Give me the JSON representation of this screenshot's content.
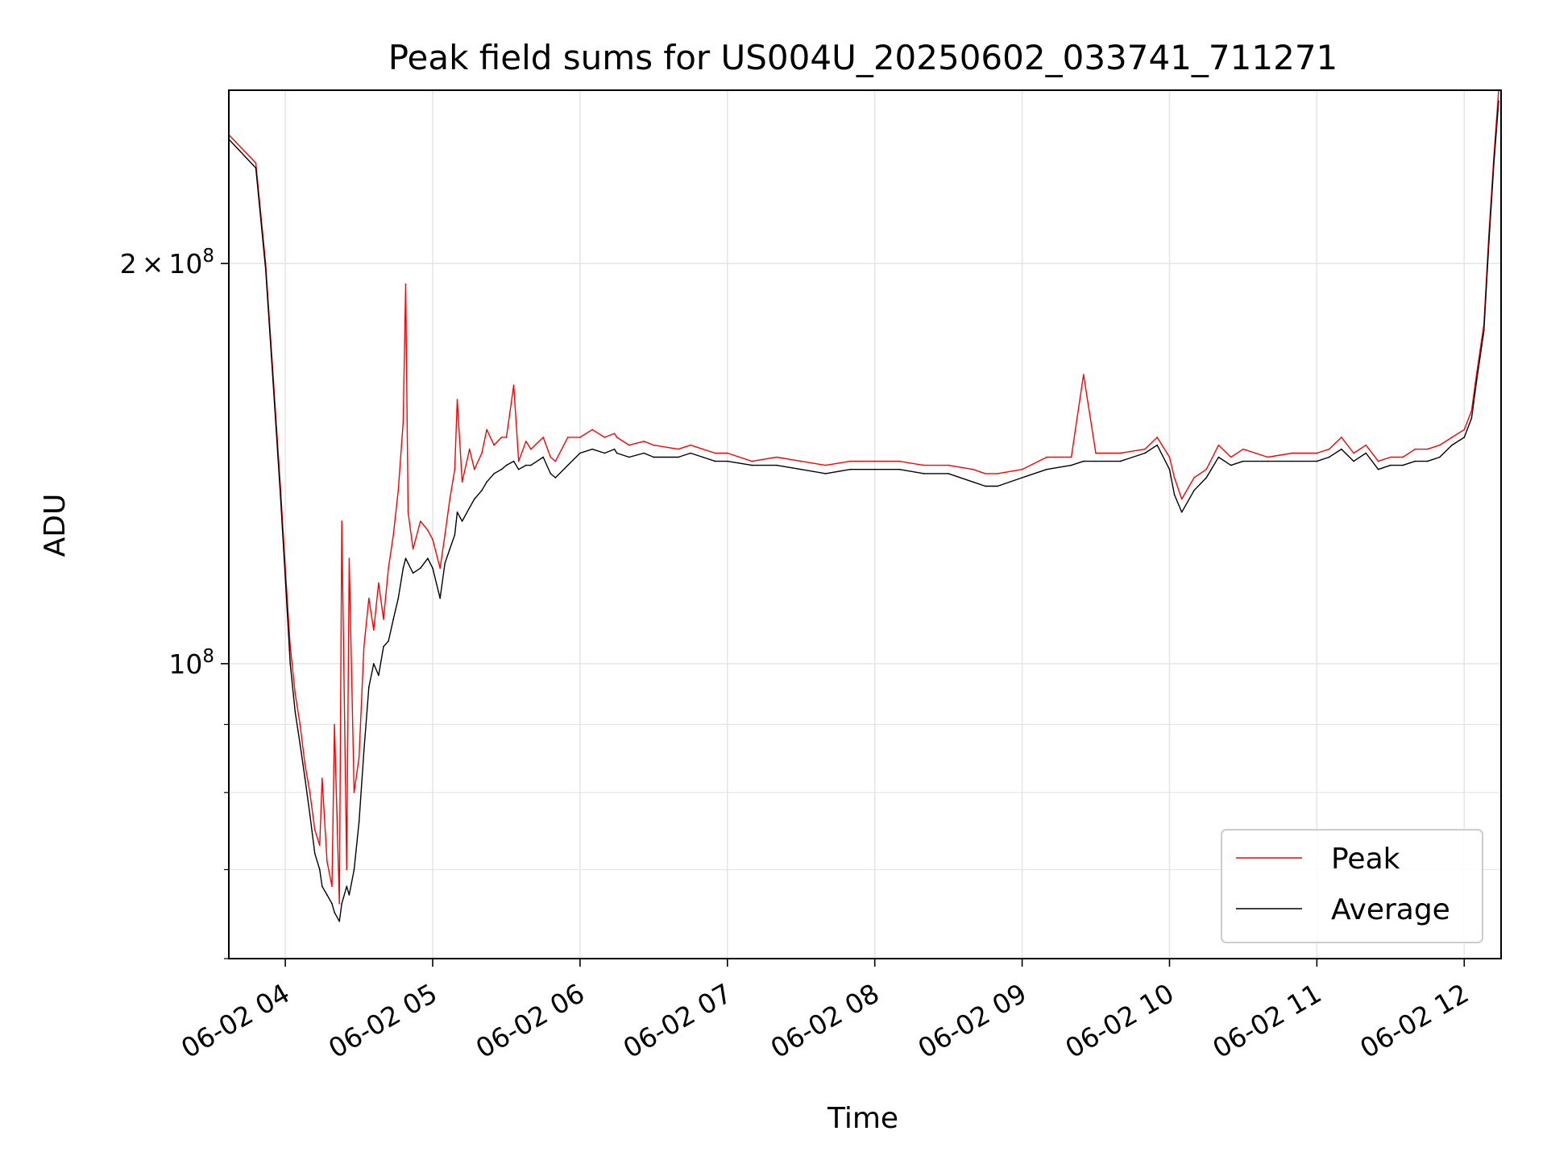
{
  "chart_data": {
    "type": "line",
    "title": "Peak field sums for US004U_20250602_033741_711271",
    "xlabel": "Time",
    "ylabel": "ADU",
    "x_scale": "time",
    "y_scale": "log",
    "xlim": [
      "06-02 03:37",
      "06-02 12:15"
    ],
    "ylim": [
      60000000,
      270000000
    ],
    "x_ticks": [
      "06-02 04",
      "06-02 05",
      "06-02 06",
      "06-02 07",
      "06-02 08",
      "06-02 09",
      "06-02 10",
      "06-02 11",
      "06-02 12"
    ],
    "y_tick_labels": [
      {
        "value": 100000000,
        "mantissa": "",
        "times": "",
        "base": "10",
        "exp": "8"
      },
      {
        "value": 200000000,
        "mantissa": "2",
        "times": "×",
        "base": "10",
        "exp": "8"
      }
    ],
    "grid": true,
    "legend_position": "lower right",
    "series": [
      {
        "name": "Peak",
        "color": "#ff0000",
        "x": [
          "06-02 03:37",
          "06-02 03:48",
          "06-02 03:52",
          "06-02 03:55",
          "06-02 03:58",
          "06-02 04:00",
          "06-02 04:02",
          "06-02 04:04",
          "06-02 04:06",
          "06-02 04:08",
          "06-02 04:10",
          "06-02 04:12",
          "06-02 04:14",
          "06-02 04:15",
          "06-02 04:17",
          "06-02 04:19",
          "06-02 04:20",
          "06-02 04:22",
          "06-02 04:23",
          "06-02 04:25",
          "06-02 04:26",
          "06-02 04:28",
          "06-02 04:30",
          "06-02 04:32",
          "06-02 04:34",
          "06-02 04:36",
          "06-02 04:38",
          "06-02 04:40",
          "06-02 04:42",
          "06-02 04:44",
          "06-02 04:46",
          "06-02 04:48",
          "06-02 04:49",
          "06-02 04:50",
          "06-02 04:52",
          "06-02 04:55",
          "06-02 04:58",
          "06-02 05:00",
          "06-02 05:03",
          "06-02 05:05",
          "06-02 05:07",
          "06-02 05:09",
          "06-02 05:10",
          "06-02 05:12",
          "06-02 05:15",
          "06-02 05:17",
          "06-02 05:20",
          "06-02 05:22",
          "06-02 05:25",
          "06-02 05:28",
          "06-02 05:30",
          "06-02 05:33",
          "06-02 05:35",
          "06-02 05:38",
          "06-02 05:40",
          "06-02 05:45",
          "06-02 05:48",
          "06-02 05:50",
          "06-02 05:55",
          "06-02 06:00",
          "06-02 06:05",
          "06-02 06:10",
          "06-02 06:14",
          "06-02 06:15",
          "06-02 06:20",
          "06-02 06:26",
          "06-02 06:30",
          "06-02 06:40",
          "06-02 06:45",
          "06-02 06:50",
          "06-02 06:55",
          "06-02 07:00",
          "06-02 07:10",
          "06-02 07:20",
          "06-02 07:30",
          "06-02 07:40",
          "06-02 07:50",
          "06-02 08:00",
          "06-02 08:10",
          "06-02 08:20",
          "06-02 08:30",
          "06-02 08:40",
          "06-02 08:45",
          "06-02 08:50",
          "06-02 09:00",
          "06-02 09:10",
          "06-02 09:20",
          "06-02 09:25",
          "06-02 09:30",
          "06-02 09:40",
          "06-02 09:50",
          "06-02 09:55",
          "06-02 10:00",
          "06-02 10:02",
          "06-02 10:05",
          "06-02 10:10",
          "06-02 10:15",
          "06-02 10:20",
          "06-02 10:25",
          "06-02 10:30",
          "06-02 10:40",
          "06-02 10:50",
          "06-02 11:00",
          "06-02 11:05",
          "06-02 11:10",
          "06-02 11:15",
          "06-02 11:20",
          "06-02 11:25",
          "06-02 11:30",
          "06-02 11:35",
          "06-02 11:40",
          "06-02 11:45",
          "06-02 11:50",
          "06-02 11:55",
          "06-02 12:00",
          "06-02 12:03",
          "06-02 12:05",
          "06-02 12:08",
          "06-02 12:10",
          "06-02 12:12",
          "06-02 12:14"
        ],
        "values": [
          250000000,
          238000000,
          200000000,
          165000000,
          136000000,
          118000000,
          103000000,
          95000000,
          90000000,
          84000000,
          80000000,
          75000000,
          73000000,
          82000000,
          71000000,
          68000000,
          90000000,
          66000000,
          128000000,
          70000000,
          120000000,
          80000000,
          85000000,
          103000000,
          112000000,
          106000000,
          115000000,
          108000000,
          118000000,
          125000000,
          135000000,
          152000000,
          193000000,
          130000000,
          122000000,
          128000000,
          126000000,
          124000000,
          118000000,
          125000000,
          133000000,
          140000000,
          158000000,
          137000000,
          145000000,
          140000000,
          144000000,
          150000000,
          146000000,
          148000000,
          148000000,
          162000000,
          142000000,
          147000000,
          145000000,
          148000000,
          143000000,
          142000000,
          148000000,
          148000000,
          150000000,
          148000000,
          149000000,
          148000000,
          146000000,
          147000000,
          146000000,
          145000000,
          146000000,
          145000000,
          144000000,
          144000000,
          142000000,
          143000000,
          142000000,
          141000000,
          142000000,
          142000000,
          142000000,
          141000000,
          141000000,
          140000000,
          139000000,
          139000000,
          140000000,
          143000000,
          143000000,
          165000000,
          144000000,
          144000000,
          145000000,
          148000000,
          143000000,
          138000000,
          133000000,
          138000000,
          140000000,
          146000000,
          143000000,
          145000000,
          143000000,
          144000000,
          144000000,
          145000000,
          148000000,
          144000000,
          146000000,
          142000000,
          143000000,
          143000000,
          145000000,
          145000000,
          146000000,
          148000000,
          150000000,
          155000000,
          165000000,
          180000000,
          210000000,
          240000000,
          270000000
        ]
      },
      {
        "name": "Average",
        "color": "#000000",
        "x": [
          "06-02 03:37",
          "06-02 03:48",
          "06-02 03:52",
          "06-02 03:55",
          "06-02 03:58",
          "06-02 04:00",
          "06-02 04:02",
          "06-02 04:04",
          "06-02 04:06",
          "06-02 04:08",
          "06-02 04:10",
          "06-02 04:12",
          "06-02 04:14",
          "06-02 04:15",
          "06-02 04:17",
          "06-02 04:19",
          "06-02 04:20",
          "06-02 04:22",
          "06-02 04:23",
          "06-02 04:25",
          "06-02 04:26",
          "06-02 04:28",
          "06-02 04:30",
          "06-02 04:32",
          "06-02 04:34",
          "06-02 04:36",
          "06-02 04:38",
          "06-02 04:40",
          "06-02 04:42",
          "06-02 04:44",
          "06-02 04:46",
          "06-02 04:48",
          "06-02 04:49",
          "06-02 04:50",
          "06-02 04:52",
          "06-02 04:55",
          "06-02 04:58",
          "06-02 05:00",
          "06-02 05:03",
          "06-02 05:05",
          "06-02 05:07",
          "06-02 05:09",
          "06-02 05:10",
          "06-02 05:12",
          "06-02 05:15",
          "06-02 05:17",
          "06-02 05:20",
          "06-02 05:22",
          "06-02 05:25",
          "06-02 05:28",
          "06-02 05:30",
          "06-02 05:33",
          "06-02 05:35",
          "06-02 05:38",
          "06-02 05:40",
          "06-02 05:45",
          "06-02 05:48",
          "06-02 05:50",
          "06-02 05:55",
          "06-02 06:00",
          "06-02 06:05",
          "06-02 06:10",
          "06-02 06:14",
          "06-02 06:15",
          "06-02 06:20",
          "06-02 06:26",
          "06-02 06:30",
          "06-02 06:40",
          "06-02 06:45",
          "06-02 06:50",
          "06-02 06:55",
          "06-02 07:00",
          "06-02 07:10",
          "06-02 07:20",
          "06-02 07:30",
          "06-02 07:40",
          "06-02 07:50",
          "06-02 08:00",
          "06-02 08:10",
          "06-02 08:20",
          "06-02 08:30",
          "06-02 08:40",
          "06-02 08:45",
          "06-02 08:50",
          "06-02 09:00",
          "06-02 09:10",
          "06-02 09:20",
          "06-02 09:25",
          "06-02 09:30",
          "06-02 09:40",
          "06-02 09:50",
          "06-02 09:55",
          "06-02 10:00",
          "06-02 10:02",
          "06-02 10:05",
          "06-02 10:10",
          "06-02 10:15",
          "06-02 10:20",
          "06-02 10:25",
          "06-02 10:30",
          "06-02 10:40",
          "06-02 10:50",
          "06-02 11:00",
          "06-02 11:05",
          "06-02 11:10",
          "06-02 11:15",
          "06-02 11:20",
          "06-02 11:25",
          "06-02 11:30",
          "06-02 11:35",
          "06-02 11:40",
          "06-02 11:45",
          "06-02 11:50",
          "06-02 11:55",
          "06-02 12:00",
          "06-02 12:03",
          "06-02 12:05",
          "06-02 12:08",
          "06-02 12:10",
          "06-02 12:12",
          "06-02 12:14"
        ],
        "values": [
          248000000,
          236000000,
          198000000,
          163000000,
          134000000,
          116000000,
          100000000,
          92000000,
          87000000,
          82000000,
          77000000,
          72000000,
          70000000,
          68000000,
          67000000,
          66000000,
          65000000,
          64000000,
          66000000,
          68000000,
          67000000,
          70000000,
          76000000,
          86000000,
          96000000,
          100000000,
          98000000,
          103000000,
          104000000,
          108000000,
          112000000,
          118000000,
          120000000,
          119000000,
          117000000,
          118000000,
          120000000,
          118000000,
          112000000,
          119000000,
          122000000,
          125000000,
          130000000,
          128000000,
          131000000,
          133000000,
          135000000,
          137000000,
          139000000,
          140000000,
          141000000,
          142000000,
          140000000,
          141000000,
          141000000,
          143000000,
          139000000,
          138000000,
          141000000,
          144000000,
          145000000,
          144000000,
          145000000,
          144000000,
          143000000,
          144000000,
          143000000,
          143000000,
          144000000,
          143000000,
          142000000,
          142000000,
          141000000,
          141000000,
          140000000,
          139000000,
          140000000,
          140000000,
          140000000,
          139000000,
          139000000,
          137000000,
          136000000,
          136000000,
          138000000,
          140000000,
          141000000,
          142000000,
          142000000,
          142000000,
          144000000,
          146000000,
          140000000,
          134000000,
          130000000,
          135000000,
          138000000,
          143000000,
          141000000,
          142000000,
          142000000,
          142000000,
          142000000,
          143000000,
          145000000,
          142000000,
          144000000,
          140000000,
          141000000,
          141000000,
          142000000,
          142000000,
          143000000,
          146000000,
          148000000,
          153000000,
          163000000,
          178000000,
          207000000,
          237000000,
          265000000
        ]
      }
    ]
  }
}
